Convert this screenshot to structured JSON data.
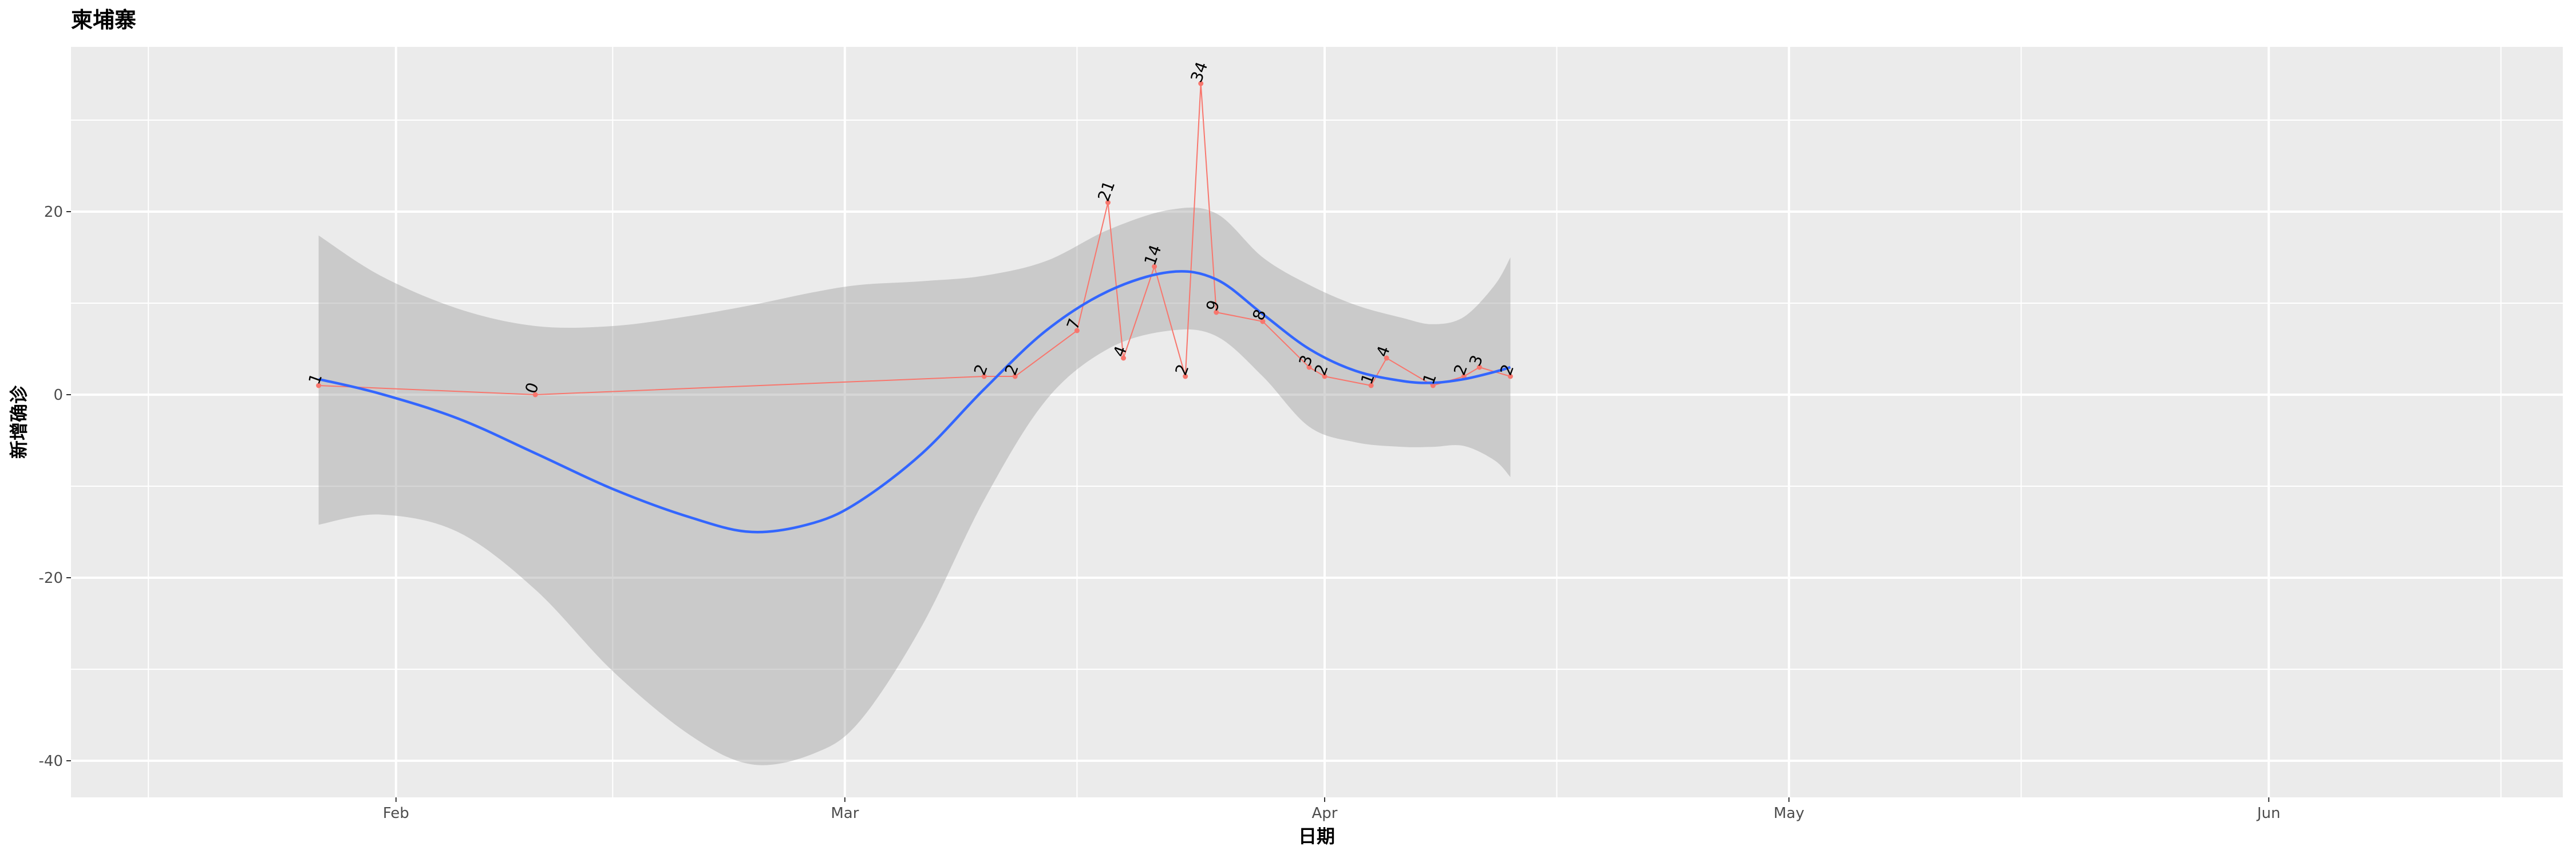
{
  "chart_data": {
    "type": "line",
    "title": "柬埔寨",
    "xlabel": "日期",
    "ylabel": "新增确诊",
    "xlim": [
      "2020-01-11",
      "2020-06-20"
    ],
    "ylim": [
      -44,
      38
    ],
    "x_ticks": [
      {
        "date": "2020-02-01",
        "label": "Feb"
      },
      {
        "date": "2020-03-01",
        "label": "Mar"
      },
      {
        "date": "2020-04-01",
        "label": "Apr"
      },
      {
        "date": "2020-05-01",
        "label": "May"
      },
      {
        "date": "2020-06-01",
        "label": "Jun"
      }
    ],
    "x_minor_ticks": [
      "2020-01-16",
      "2020-02-15",
      "2020-03-16",
      "2020-04-16",
      "2020-05-16",
      "2020-06-16"
    ],
    "y_ticks": [
      -40,
      -20,
      0,
      20
    ],
    "y_minor_ticks": [
      -30,
      -10,
      10,
      30
    ],
    "grid": true,
    "series": [
      {
        "kind": "observed",
        "color": "#F8766D",
        "points": [
          {
            "x": "2020-01-27",
            "y": 1
          },
          {
            "x": "2020-02-10",
            "y": 0
          },
          {
            "x": "2020-03-10",
            "y": 2
          },
          {
            "x": "2020-03-12",
            "y": 2
          },
          {
            "x": "2020-03-16",
            "y": 7
          },
          {
            "x": "2020-03-18",
            "y": 21
          },
          {
            "x": "2020-03-19",
            "y": 4
          },
          {
            "x": "2020-03-21",
            "y": 14
          },
          {
            "x": "2020-03-23",
            "y": 2
          },
          {
            "x": "2020-03-24",
            "y": 34
          },
          {
            "x": "2020-03-25",
            "y": 9
          },
          {
            "x": "2020-03-28",
            "y": 8
          },
          {
            "x": "2020-03-31",
            "y": 3
          },
          {
            "x": "2020-04-01",
            "y": 2
          },
          {
            "x": "2020-04-04",
            "y": 1
          },
          {
            "x": "2020-04-05",
            "y": 4
          },
          {
            "x": "2020-04-08",
            "y": 1
          },
          {
            "x": "2020-04-10",
            "y": 2
          },
          {
            "x": "2020-04-11",
            "y": 3
          },
          {
            "x": "2020-04-13",
            "y": 2
          }
        ]
      },
      {
        "kind": "smooth",
        "color": "#3366FF",
        "band_color": "#999999",
        "points": [
          {
            "x": "2020-01-27",
            "y": 1.7,
            "lo": -14.2,
            "hi": 17.4
          },
          {
            "x": "2020-01-31",
            "y": 0.1,
            "lo": -13.1,
            "hi": 13.0
          },
          {
            "x": "2020-02-05",
            "y": -2.6,
            "lo": -15.0,
            "hi": 9.4
          },
          {
            "x": "2020-02-10",
            "y": -6.4,
            "lo": -21.3,
            "hi": 7.5
          },
          {
            "x": "2020-02-15",
            "y": -10.3,
            "lo": -30.2,
            "hi": 7.5
          },
          {
            "x": "2020-02-20",
            "y": -13.4,
            "lo": -37.2,
            "hi": 8.6
          },
          {
            "x": "2020-02-24",
            "y": -15.0,
            "lo": -40.4,
            "hi": 9.8
          },
          {
            "x": "2020-02-28",
            "y": -14.0,
            "lo": -39.2,
            "hi": 11.2
          },
          {
            "x": "2020-03-02",
            "y": -11.6,
            "lo": -35.6,
            "hi": 12.0
          },
          {
            "x": "2020-03-06",
            "y": -6.4,
            "lo": -25.2,
            "hi": 12.4
          },
          {
            "x": "2020-03-10",
            "y": 0.6,
            "lo": -11.5,
            "hi": 13.0
          },
          {
            "x": "2020-03-14",
            "y": 7.0,
            "lo": -0.6,
            "hi": 14.6
          },
          {
            "x": "2020-03-18",
            "y": 11.3,
            "lo": 5.0,
            "hi": 18.0
          },
          {
            "x": "2020-03-22",
            "y": 13.4,
            "lo": 7.0,
            "hi": 20.2
          },
          {
            "x": "2020-03-25",
            "y": 12.6,
            "lo": 6.4,
            "hi": 19.8
          },
          {
            "x": "2020-03-28",
            "y": 8.8,
            "lo": 2.0,
            "hi": 15.0
          },
          {
            "x": "2020-03-31",
            "y": 5.0,
            "lo": -3.5,
            "hi": 12.0
          },
          {
            "x": "2020-04-03",
            "y": 2.6,
            "lo": -5.2,
            "hi": 9.8
          },
          {
            "x": "2020-04-06",
            "y": 1.5,
            "lo": -5.7,
            "hi": 8.4
          },
          {
            "x": "2020-04-08",
            "y": 1.3,
            "lo": -5.7,
            "hi": 7.7
          },
          {
            "x": "2020-04-10",
            "y": 1.7,
            "lo": -5.6,
            "hi": 8.5
          },
          {
            "x": "2020-04-12",
            "y": 2.5,
            "lo": -7.2,
            "hi": 12.0
          },
          {
            "x": "2020-04-13",
            "y": 3.0,
            "lo": -9.0,
            "hi": 15.0
          }
        ]
      }
    ]
  }
}
